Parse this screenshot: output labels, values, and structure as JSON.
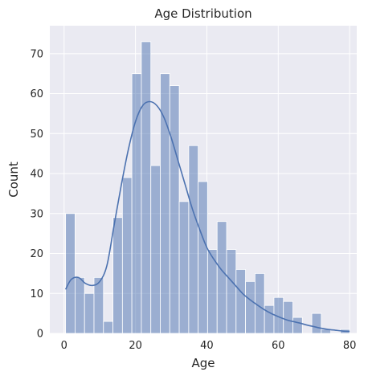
{
  "chart_data": {
    "type": "bar",
    "subtype": "histogram-with-kde",
    "title": "Age Distribution",
    "xlabel": "Age",
    "ylabel": "Count",
    "xlim": [
      -4,
      82
    ],
    "ylim": [
      0,
      77
    ],
    "x_ticks": [
      0,
      20,
      40,
      60,
      80
    ],
    "y_ticks": [
      0,
      10,
      20,
      30,
      40,
      50,
      60,
      70
    ],
    "grid": true,
    "legend": "none",
    "bin_width": 2.653,
    "bins": [
      {
        "start": 0.42,
        "count": 30
      },
      {
        "start": 3.07,
        "count": 14
      },
      {
        "start": 5.73,
        "count": 10
      },
      {
        "start": 8.38,
        "count": 14
      },
      {
        "start": 11.03,
        "count": 3
      },
      {
        "start": 13.69,
        "count": 29
      },
      {
        "start": 16.34,
        "count": 39
      },
      {
        "start": 18.99,
        "count": 65
      },
      {
        "start": 21.65,
        "count": 73
      },
      {
        "start": 24.3,
        "count": 42
      },
      {
        "start": 26.95,
        "count": 65
      },
      {
        "start": 29.61,
        "count": 62
      },
      {
        "start": 32.26,
        "count": 33
      },
      {
        "start": 34.92,
        "count": 47
      },
      {
        "start": 37.57,
        "count": 38
      },
      {
        "start": 40.22,
        "count": 21
      },
      {
        "start": 42.88,
        "count": 28
      },
      {
        "start": 45.53,
        "count": 21
      },
      {
        "start": 48.18,
        "count": 16
      },
      {
        "start": 50.84,
        "count": 13
      },
      {
        "start": 53.49,
        "count": 15
      },
      {
        "start": 56.14,
        "count": 7
      },
      {
        "start": 58.8,
        "count": 9
      },
      {
        "start": 61.45,
        "count": 8
      },
      {
        "start": 64.1,
        "count": 4
      },
      {
        "start": 66.76,
        "count": 0
      },
      {
        "start": 69.41,
        "count": 5
      },
      {
        "start": 72.06,
        "count": 1
      },
      {
        "start": 74.72,
        "count": 0
      },
      {
        "start": 77.37,
        "count": 1
      }
    ],
    "kde": {
      "x": [
        0.42,
        2,
        4,
        6,
        8,
        10,
        12,
        14,
        16,
        18,
        20,
        22,
        24,
        26,
        28,
        30,
        32,
        34,
        36,
        38,
        40,
        42,
        44,
        46,
        48,
        50,
        52,
        54,
        56,
        58,
        60,
        62,
        64,
        66,
        68,
        70,
        72,
        74,
        76,
        78,
        80
      ],
      "y": [
        11,
        13.5,
        14,
        12.5,
        12,
        13,
        17,
        27,
        37,
        46,
        53,
        57,
        58,
        57,
        54,
        49,
        43,
        37,
        31,
        26,
        21.5,
        18.5,
        16,
        14,
        12,
        10,
        8.5,
        7.2,
        6,
        5,
        4.2,
        3.5,
        3,
        2.6,
        2.1,
        1.7,
        1.3,
        1,
        0.8,
        0.6,
        0.5
      ]
    },
    "colors": {
      "background": "#eaeaf2",
      "grid": "#ffffff",
      "bar_fill": "#4c72b0",
      "bar_opacity": 0.5,
      "bar_edge": "#ffffff",
      "kde_line": "#4c72b0"
    }
  }
}
